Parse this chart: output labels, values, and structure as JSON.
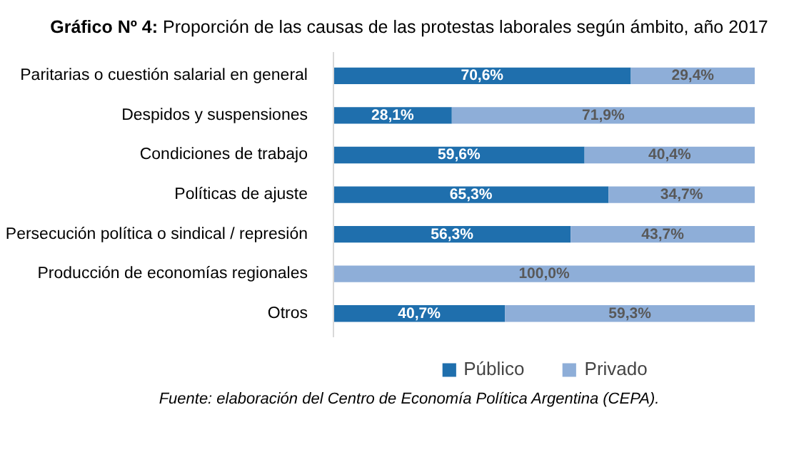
{
  "chart_data": {
    "type": "bar",
    "orientation": "horizontal",
    "stacked": true,
    "title": "Gráfico Nº 4: Proporción de las causas de las protestas laborales según ámbito, año 2017",
    "categories": [
      "Paritarias o cuestión salarial en general",
      "Despidos y suspensiones",
      "Condiciones de trabajo",
      "Políticas de ajuste",
      "Persecución política o sindical / represión",
      "Producción de economías regionales",
      "Otros"
    ],
    "series": [
      {
        "name": "Público",
        "color": "#1f6fad",
        "values": [
          70.6,
          28.1,
          59.6,
          65.3,
          56.3,
          0,
          40.7
        ],
        "value_labels": [
          "70,6%",
          "28,1%",
          "59,6%",
          "65,3%",
          "56,3%",
          null,
          "40,7%"
        ]
      },
      {
        "name": "Privado",
        "color": "#8eaed8",
        "values": [
          29.4,
          71.9,
          40.4,
          34.7,
          43.7,
          100.0,
          59.3
        ],
        "value_labels": [
          "29,4%",
          "71,9%",
          "40,4%",
          "34,7%",
          "43,7%",
          "100,0%",
          "59,3%"
        ]
      }
    ],
    "xlim": [
      0,
      100
    ],
    "tick_labels": "y",
    "legend": "bottom",
    "grid": false,
    "annotations": [
      "Fuente: elaboración del Centro de Economía Política Argentina (CEPA)."
    ]
  }
}
